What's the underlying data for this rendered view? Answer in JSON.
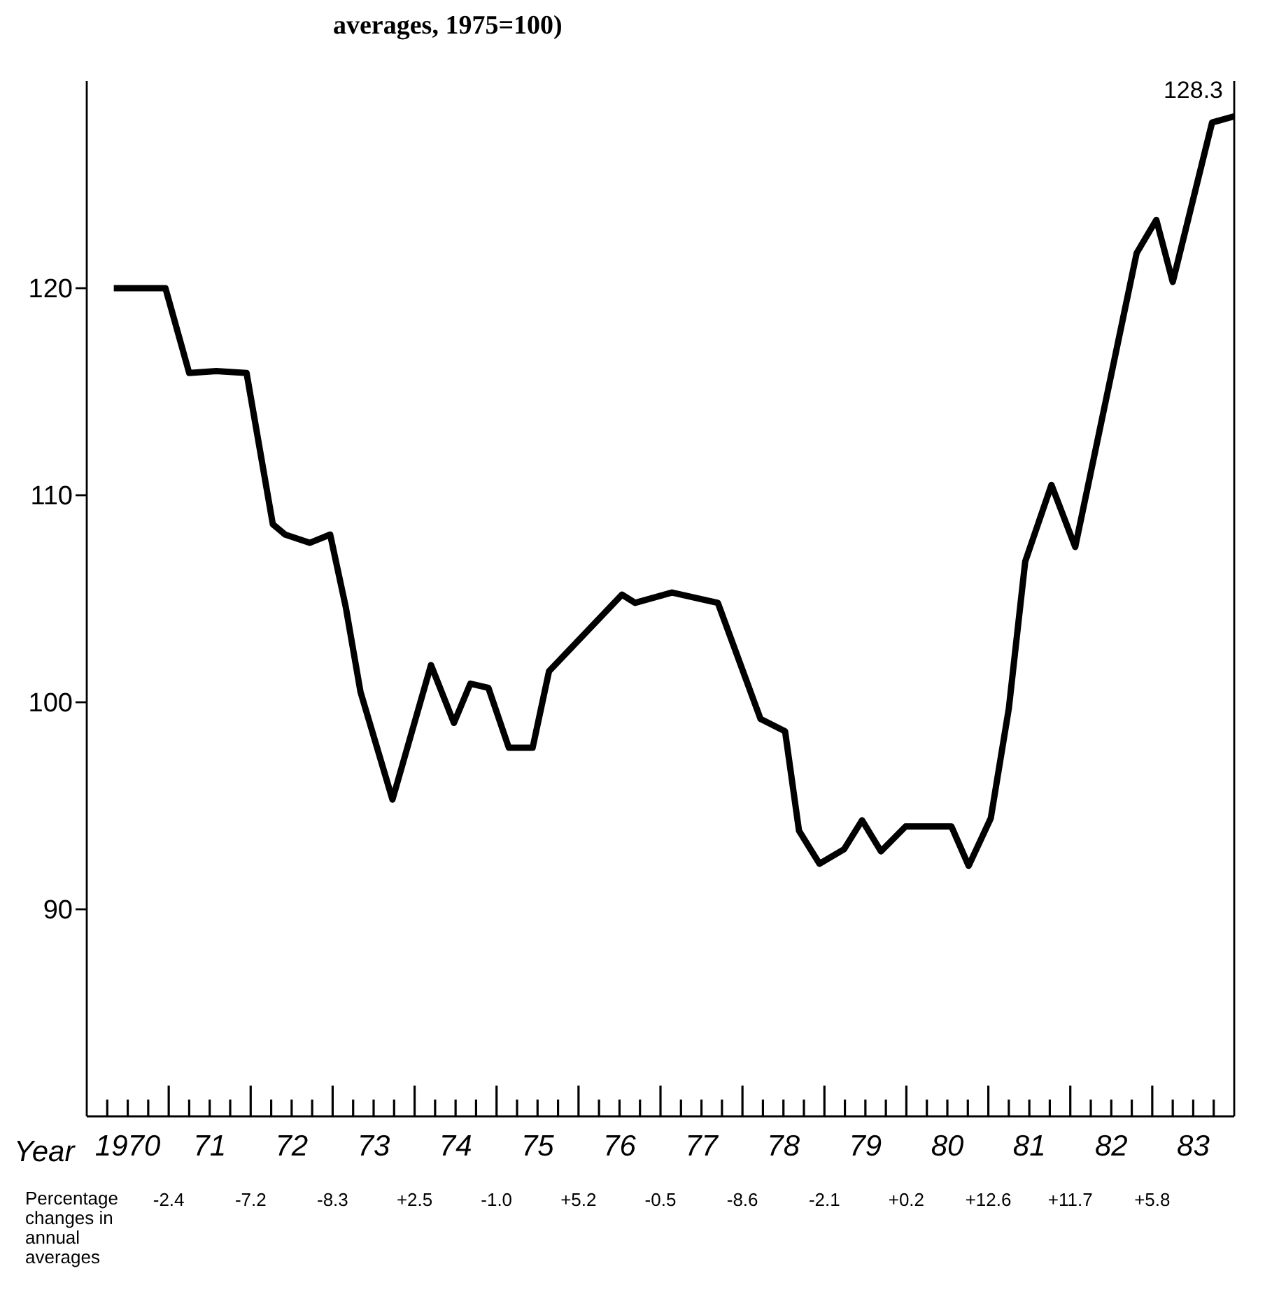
{
  "chart_data": {
    "type": "line",
    "title": "averages, 1975=100)",
    "xlabel": "Year",
    "x": [
      1969.83,
      1970.46,
      1970.75,
      1971.08,
      1971.45,
      1971.77,
      1971.92,
      1972.22,
      1972.47,
      1972.66,
      1972.84,
      1973.23,
      1973.7,
      1973.98,
      1974.18,
      1974.4,
      1974.65,
      1974.94,
      1975.14,
      1976.03,
      1976.19,
      1976.64,
      1977.2,
      1977.72,
      1978.02,
      1978.19,
      1978.44,
      1978.74,
      1978.96,
      1979.19,
      1979.49,
      1980.05,
      1980.26,
      1980.53,
      1980.75,
      1980.95,
      1981.27,
      1981.56,
      1982.31,
      1982.55,
      1982.75,
      1983.23,
      1983.5
    ],
    "series": [
      {
        "color": "#000000",
        "values": [
          120.0,
          120.0,
          115.9,
          116.0,
          115.9,
          108.6,
          108.1,
          107.7,
          108.1,
          104.6,
          100.5,
          95.3,
          101.8,
          99.0,
          100.9,
          100.7,
          97.8,
          97.8,
          101.5,
          105.2,
          104.8,
          105.3,
          104.8,
          99.2,
          98.6,
          93.8,
          92.2,
          92.9,
          94.3,
          92.8,
          94.0,
          94.0,
          92.1,
          94.4,
          99.7,
          106.8,
          110.5,
          107.5,
          121.7,
          123.3,
          120.3,
          128.0,
          128.3
        ]
      }
    ],
    "xlim": [
      1969.5,
      1983.5
    ],
    "xticks": [
      {
        "value": 1969.75,
        "label": null
      },
      {
        "value": 1970,
        "label": "1970"
      },
      {
        "value": 1970.25,
        "label": null
      },
      {
        "value": 1970.5,
        "label": null
      },
      {
        "value": 1970.75,
        "label": null
      },
      {
        "value": 1971,
        "label": "71"
      },
      {
        "value": 1971.25,
        "label": null
      },
      {
        "value": 1971.5,
        "label": null
      },
      {
        "value": 1971.75,
        "label": null
      },
      {
        "value": 1972,
        "label": "72"
      },
      {
        "value": 1972.25,
        "label": null
      },
      {
        "value": 1972.5,
        "label": null
      },
      {
        "value": 1972.75,
        "label": null
      },
      {
        "value": 1973,
        "label": "73"
      },
      {
        "value": 1973.25,
        "label": null
      },
      {
        "value": 1973.5,
        "label": null
      },
      {
        "value": 1973.75,
        "label": null
      },
      {
        "value": 1974,
        "label": "74"
      },
      {
        "value": 1974.25,
        "label": null
      },
      {
        "value": 1974.5,
        "label": null
      },
      {
        "value": 1974.75,
        "label": null
      },
      {
        "value": 1975,
        "label": "75"
      },
      {
        "value": 1975.25,
        "label": null
      },
      {
        "value": 1975.5,
        "label": null
      },
      {
        "value": 1975.75,
        "label": null
      },
      {
        "value": 1976,
        "label": "76"
      },
      {
        "value": 1976.25,
        "label": null
      },
      {
        "value": 1976.5,
        "label": null
      },
      {
        "value": 1976.75,
        "label": null
      },
      {
        "value": 1977,
        "label": "77"
      },
      {
        "value": 1977.25,
        "label": null
      },
      {
        "value": 1977.5,
        "label": null
      },
      {
        "value": 1977.75,
        "label": null
      },
      {
        "value": 1978,
        "label": "78"
      },
      {
        "value": 1978.25,
        "label": null
      },
      {
        "value": 1978.5,
        "label": null
      },
      {
        "value": 1978.75,
        "label": null
      },
      {
        "value": 1979,
        "label": "79"
      },
      {
        "value": 1979.25,
        "label": null
      },
      {
        "value": 1979.5,
        "label": null
      },
      {
        "value": 1979.75,
        "label": null
      },
      {
        "value": 1980,
        "label": "80"
      },
      {
        "value": 1980.25,
        "label": null
      },
      {
        "value": 1980.5,
        "label": null
      },
      {
        "value": 1980.75,
        "label": null
      },
      {
        "value": 1981,
        "label": "81"
      },
      {
        "value": 1981.25,
        "label": null
      },
      {
        "value": 1981.5,
        "label": null
      },
      {
        "value": 1981.75,
        "label": null
      },
      {
        "value": 1982,
        "label": "82"
      },
      {
        "value": 1982.25,
        "label": null
      },
      {
        "value": 1982.5,
        "label": null
      },
      {
        "value": 1982.75,
        "label": null
      },
      {
        "value": 1983,
        "label": "83"
      },
      {
        "value": 1983.25,
        "label": null
      }
    ],
    "ylim": [
      80,
      130
    ],
    "yticks": [
      90,
      100,
      110,
      120
    ],
    "marker": "none",
    "line_style": "solid",
    "grid": false,
    "annotations": [
      {
        "text": "128.3",
        "x": 1983.5,
        "y": 128.3
      },
      "Percentage changes in annual averages",
      "-2.4",
      "-7.2",
      "-8.3",
      "+2.5",
      "-1.0",
      "+5.2",
      "-0.5",
      "-8.6",
      "-2.1",
      "+0.2",
      "+12.6",
      "+11.7",
      "+5.8"
    ]
  }
}
